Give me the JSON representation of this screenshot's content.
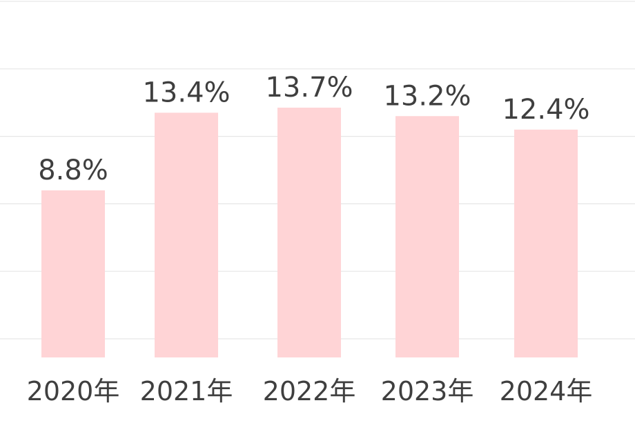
{
  "chart_data": {
    "type": "bar",
    "categories": [
      "2020年",
      "2021年",
      "2022年",
      "2023年",
      "2024年"
    ],
    "values": [
      8.8,
      13.4,
      13.7,
      13.2,
      12.4
    ],
    "value_labels": [
      "8.8%",
      "13.4%",
      "13.7%",
      "13.2%",
      "12.4%"
    ],
    "title": "",
    "xlabel": "",
    "ylabel": "",
    "ylim": [
      0,
      20
    ],
    "grid": true,
    "legend": "none",
    "bar_color": "#ffd4d6",
    "grid_color": "#e6e6e6",
    "text_color": "#3f3f3f"
  }
}
